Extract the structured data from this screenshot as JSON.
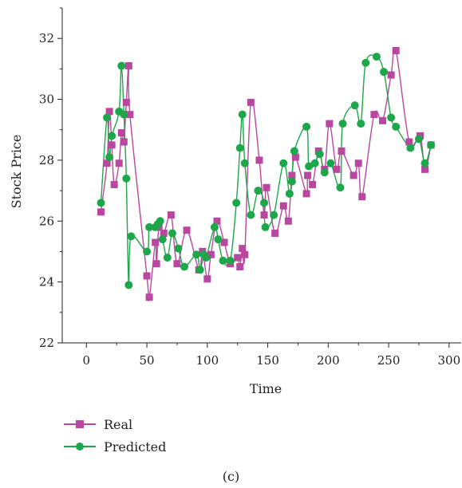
{
  "chart_data": {
    "type": "line",
    "xlabel": "Time",
    "ylabel": "Stock Price",
    "xlim": [
      -20,
      310
    ],
    "ylim": [
      22,
      33
    ],
    "xticks": [
      0,
      50,
      100,
      150,
      200,
      250,
      300
    ],
    "yticks": [
      22,
      24,
      26,
      28,
      30,
      32
    ],
    "legend_position": "bottom-left",
    "series": [
      {
        "name": "Real",
        "color": "#b9479f",
        "marker": "square",
        "points": [
          [
            12,
            26.3
          ],
          [
            17,
            27.9
          ],
          [
            19,
            29.6
          ],
          [
            21,
            28.5
          ],
          [
            23,
            27.2
          ],
          [
            27,
            27.9
          ],
          [
            29,
            28.9
          ],
          [
            31,
            28.6
          ],
          [
            33,
            29.9
          ],
          [
            35,
            31.1
          ],
          [
            36,
            29.5
          ],
          [
            50,
            24.2
          ],
          [
            52,
            23.5
          ],
          [
            57,
            25.3
          ],
          [
            58,
            24.6
          ],
          [
            60,
            25.8
          ],
          [
            64,
            25.6
          ],
          [
            70,
            26.2
          ],
          [
            75,
            24.6
          ],
          [
            83,
            25.7
          ],
          [
            93,
            24.4
          ],
          [
            96,
            25.0
          ],
          [
            100,
            24.1
          ],
          [
            103,
            24.9
          ],
          [
            108,
            26.0
          ],
          [
            114,
            25.3
          ],
          [
            119,
            24.6
          ],
          [
            125,
            24.8
          ],
          [
            127,
            24.5
          ],
          [
            129,
            25.1
          ],
          [
            131,
            24.9
          ],
          [
            136,
            29.9
          ],
          [
            143,
            28.0
          ],
          [
            147,
            26.2
          ],
          [
            149,
            27.1
          ],
          [
            156,
            25.6
          ],
          [
            163,
            26.5
          ],
          [
            167,
            26.0
          ],
          [
            170,
            27.5
          ],
          [
            173,
            28.1
          ],
          [
            182,
            26.9
          ],
          [
            183,
            27.5
          ],
          [
            187,
            27.2
          ],
          [
            192,
            28.3
          ],
          [
            197,
            27.7
          ],
          [
            201,
            29.2
          ],
          [
            207,
            27.7
          ],
          [
            211,
            28.3
          ],
          [
            221,
            27.5
          ],
          [
            225,
            27.9
          ],
          [
            228,
            26.8
          ],
          [
            238,
            29.5
          ],
          [
            245,
            29.3
          ],
          [
            252,
            30.8
          ],
          [
            256,
            31.6
          ],
          [
            267,
            28.6
          ],
          [
            276,
            28.8
          ],
          [
            280,
            27.7
          ],
          [
            285,
            28.5
          ]
        ]
      },
      {
        "name": "Predicted",
        "color": "#1ea64a",
        "marker": "circle",
        "points": [
          [
            12,
            26.6
          ],
          [
            17,
            29.4
          ],
          [
            19,
            28.1
          ],
          [
            21,
            28.8
          ],
          [
            27,
            29.6
          ],
          [
            29,
            31.1
          ],
          [
            31,
            29.5
          ],
          [
            33,
            27.4
          ],
          [
            35,
            23.9
          ],
          [
            37,
            25.5
          ],
          [
            50,
            25.0
          ],
          [
            52,
            25.8
          ],
          [
            57,
            25.8
          ],
          [
            59,
            25.9
          ],
          [
            61,
            26.0
          ],
          [
            63,
            25.4
          ],
          [
            67,
            24.8
          ],
          [
            71,
            25.6
          ],
          [
            76,
            25.1
          ],
          [
            81,
            24.5
          ],
          [
            91,
            24.9
          ],
          [
            94,
            24.4
          ],
          [
            97,
            24.9
          ],
          [
            99,
            24.8
          ],
          [
            106,
            25.8
          ],
          [
            109,
            25.4
          ],
          [
            113,
            24.7
          ],
          [
            119,
            24.7
          ],
          [
            124,
            26.6
          ],
          [
            127,
            28.4
          ],
          [
            129,
            29.5
          ],
          [
            131,
            27.9
          ],
          [
            136,
            26.2
          ],
          [
            142,
            27.0
          ],
          [
            147,
            26.6
          ],
          [
            148,
            25.8
          ],
          [
            155,
            26.2
          ],
          [
            163,
            27.9
          ],
          [
            168,
            26.9
          ],
          [
            170,
            27.3
          ],
          [
            172,
            28.3
          ],
          [
            182,
            29.1
          ],
          [
            184,
            27.8
          ],
          [
            189,
            27.9
          ],
          [
            193,
            28.2
          ],
          [
            197,
            27.6
          ],
          [
            202,
            27.9
          ],
          [
            210,
            27.1
          ],
          [
            212,
            29.2
          ],
          [
            222,
            29.8
          ],
          [
            227,
            29.2
          ],
          [
            231,
            31.2
          ],
          [
            240,
            31.4
          ],
          [
            246,
            30.9
          ],
          [
            252,
            29.4
          ],
          [
            256,
            29.1
          ],
          [
            268,
            28.4
          ],
          [
            275,
            28.7
          ],
          [
            280,
            27.9
          ],
          [
            285,
            28.5
          ]
        ]
      }
    ]
  },
  "caption": "(c)"
}
